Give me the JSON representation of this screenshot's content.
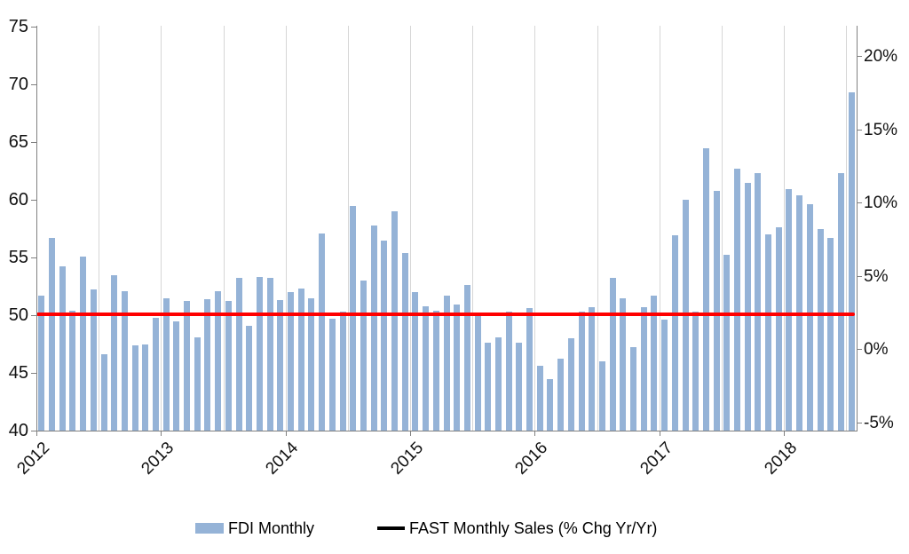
{
  "chart_data": {
    "type": "bar",
    "title": "",
    "categories": [
      "2012-01",
      "2012-02",
      "2012-03",
      "2012-04",
      "2012-05",
      "2012-06",
      "2012-07",
      "2012-08",
      "2012-09",
      "2012-10",
      "2012-11",
      "2012-12",
      "2013-01",
      "2013-02",
      "2013-03",
      "2013-04",
      "2013-05",
      "2013-06",
      "2013-07",
      "2013-08",
      "2013-09",
      "2013-10",
      "2013-11",
      "2013-12",
      "2014-01",
      "2014-02",
      "2014-03",
      "2014-04",
      "2014-05",
      "2014-06",
      "2014-07",
      "2014-08",
      "2014-09",
      "2014-10",
      "2014-11",
      "2014-12",
      "2015-01",
      "2015-02",
      "2015-03",
      "2015-04",
      "2015-05",
      "2015-06",
      "2015-07",
      "2015-08",
      "2015-09",
      "2015-10",
      "2015-11",
      "2015-12",
      "2016-01",
      "2016-02",
      "2016-03",
      "2016-04",
      "2016-05",
      "2016-06",
      "2016-07",
      "2016-08",
      "2016-09",
      "2016-10",
      "2016-11",
      "2016-12",
      "2017-01",
      "2017-02",
      "2017-03",
      "2017-04",
      "2017-05",
      "2017-06",
      "2017-07",
      "2017-08",
      "2017-09",
      "2017-10",
      "2017-11",
      "2017-12",
      "2018-01",
      "2018-02",
      "2018-03",
      "2018-04",
      "2018-05",
      "2018-06",
      "2018-07"
    ],
    "series": [
      {
        "name": "FDI Monthly",
        "type": "bar",
        "axis": "left",
        "color": "#95B3D7",
        "values": [
          51.7,
          56.7,
          54.2,
          50.4,
          55.1,
          52.2,
          46.6,
          53.5,
          52.1,
          47.4,
          47.5,
          49.8,
          51.5,
          49.5,
          51.2,
          48.1,
          51.4,
          52.1,
          51.2,
          53.2,
          49.1,
          53.3,
          53.2,
          51.3,
          52.0,
          52.3,
          51.5,
          57.1,
          49.7,
          50.3,
          59.5,
          53.0,
          57.8,
          56.5,
          59.0,
          55.4,
          52.0,
          50.8,
          50.4,
          51.7,
          50.9,
          52.6,
          49.9,
          47.6,
          48.1,
          50.3,
          47.6,
          50.6,
          45.6,
          44.5,
          46.2,
          48.0,
          50.3,
          50.7,
          46.0,
          53.2,
          51.5,
          47.2,
          50.7,
          51.7,
          49.6,
          56.9,
          60.0,
          50.3,
          64.5,
          60.8,
          55.2,
          62.7,
          61.5,
          62.3,
          57.0,
          57.6,
          60.9,
          60.4,
          59.6,
          57.5,
          56.7,
          62.3,
          69.3
        ]
      },
      {
        "name": "FAST Monthly Sales (% Chg Yr/Yr)",
        "type": "line",
        "axis": "right",
        "plot_color": "#FF0000",
        "legend_swatch_color": "#000000",
        "approx_value_pct": 2.3,
        "left_axis_equivalent": 50.1,
        "shape": "flat horizontal line across full plot width"
      }
    ],
    "left_axis": {
      "min": 40,
      "max": 75,
      "tick_labels": [
        "75",
        "70",
        "65",
        "60",
        "55",
        "50",
        "45",
        "40"
      ],
      "tick_values": [
        75,
        70,
        65,
        60,
        55,
        50,
        45,
        40
      ]
    },
    "right_axis": {
      "tick_labels": [
        "20%",
        "15%",
        "10%",
        "5%",
        "0%",
        "-5%"
      ],
      "tick_values": [
        20,
        15,
        10,
        5,
        0,
        -5
      ]
    },
    "x_axis": {
      "year_labels": [
        "2012",
        "2013",
        "2014",
        "2015",
        "2016",
        "2017",
        "2018"
      ],
      "label_rotation_deg": -45,
      "gridlines": "vertical gridlines every 6 months (Jan and Jul)"
    },
    "legend": {
      "position": "bottom",
      "items": [
        "FDI Monthly",
        "FAST Monthly Sales (% Chg Yr/Yr)"
      ]
    },
    "colors": {
      "bar_fill": "#95B3D7",
      "fast_line": "#FF0000",
      "gridline": "#D6D6D6",
      "axis": "#808080",
      "background": "#FFFFFF"
    },
    "grid": "vertical only, no horizontal gridlines"
  }
}
